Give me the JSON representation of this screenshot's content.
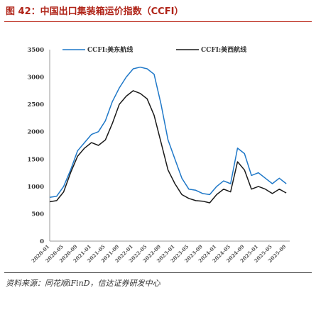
{
  "title": "图 42：中国出口集装箱运价指数（CCFI）",
  "source": "资料来源：同花顺iFinD，信达证券研发中心",
  "colors": {
    "series1": "#1f78c8",
    "series2": "#1a1a1a",
    "title": "#b02418"
  },
  "chart_data": {
    "type": "line",
    "title": "",
    "xlabel": "",
    "ylabel": "",
    "ylim": [
      0,
      3500
    ],
    "yticks": [
      0,
      500,
      1000,
      1500,
      2000,
      2500,
      3000,
      3500
    ],
    "xticks": [
      "2020-01",
      "2020-05",
      "2020-09",
      "2021-01",
      "2021-05",
      "2021-09",
      "2022-01",
      "2022-05",
      "2022-09",
      "2023-01",
      "2023-05",
      "2023-09",
      "2024-01",
      "2024-05",
      "2024-09",
      "2025-01",
      "2025-05",
      "2025-09"
    ],
    "legend": "top",
    "grid": false,
    "series": [
      {
        "name": "CCFI:美东航线",
        "values": [
          [
            "2020-01",
            800
          ],
          [
            "2020-03",
            820
          ],
          [
            "2020-05",
            1000
          ],
          [
            "2020-07",
            1300
          ],
          [
            "2020-09",
            1650
          ],
          [
            "2020-11",
            1800
          ],
          [
            "2021-01",
            1950
          ],
          [
            "2021-03",
            2000
          ],
          [
            "2021-05",
            2200
          ],
          [
            "2021-07",
            2550
          ],
          [
            "2021-09",
            2800
          ],
          [
            "2021-11",
            3000
          ],
          [
            "2022-01",
            3150
          ],
          [
            "2022-03",
            3180
          ],
          [
            "2022-05",
            3150
          ],
          [
            "2022-07",
            3050
          ],
          [
            "2022-09",
            2500
          ],
          [
            "2022-11",
            1850
          ],
          [
            "2023-01",
            1500
          ],
          [
            "2023-03",
            1150
          ],
          [
            "2023-05",
            950
          ],
          [
            "2023-07",
            930
          ],
          [
            "2023-09",
            870
          ],
          [
            "2023-11",
            850
          ],
          [
            "2024-01",
            1000
          ],
          [
            "2024-03",
            1100
          ],
          [
            "2024-05",
            1050
          ],
          [
            "2024-07",
            1700
          ],
          [
            "2024-09",
            1600
          ],
          [
            "2024-11",
            1200
          ],
          [
            "2025-01",
            1250
          ],
          [
            "2025-03",
            1150
          ],
          [
            "2025-05",
            1050
          ],
          [
            "2025-07",
            1150
          ],
          [
            "2025-09",
            1050
          ]
        ]
      },
      {
        "name": "CCFI:美西航线",
        "values": [
          [
            "2020-01",
            720
          ],
          [
            "2020-03",
            740
          ],
          [
            "2020-05",
            900
          ],
          [
            "2020-07",
            1250
          ],
          [
            "2020-09",
            1550
          ],
          [
            "2020-11",
            1700
          ],
          [
            "2021-01",
            1800
          ],
          [
            "2021-03",
            1750
          ],
          [
            "2021-05",
            1850
          ],
          [
            "2021-07",
            2150
          ],
          [
            "2021-09",
            2500
          ],
          [
            "2021-11",
            2650
          ],
          [
            "2022-01",
            2750
          ],
          [
            "2022-03",
            2700
          ],
          [
            "2022-05",
            2600
          ],
          [
            "2022-07",
            2300
          ],
          [
            "2022-09",
            1800
          ],
          [
            "2022-11",
            1300
          ],
          [
            "2023-01",
            1050
          ],
          [
            "2023-03",
            850
          ],
          [
            "2023-05",
            780
          ],
          [
            "2023-07",
            740
          ],
          [
            "2023-09",
            730
          ],
          [
            "2023-11",
            700
          ],
          [
            "2024-01",
            850
          ],
          [
            "2024-03",
            950
          ],
          [
            "2024-05",
            900
          ],
          [
            "2024-07",
            1450
          ],
          [
            "2024-09",
            1300
          ],
          [
            "2024-11",
            950
          ],
          [
            "2025-01",
            1000
          ],
          [
            "2025-03",
            950
          ],
          [
            "2025-05",
            870
          ],
          [
            "2025-07",
            950
          ],
          [
            "2025-09",
            880
          ]
        ]
      }
    ]
  }
}
